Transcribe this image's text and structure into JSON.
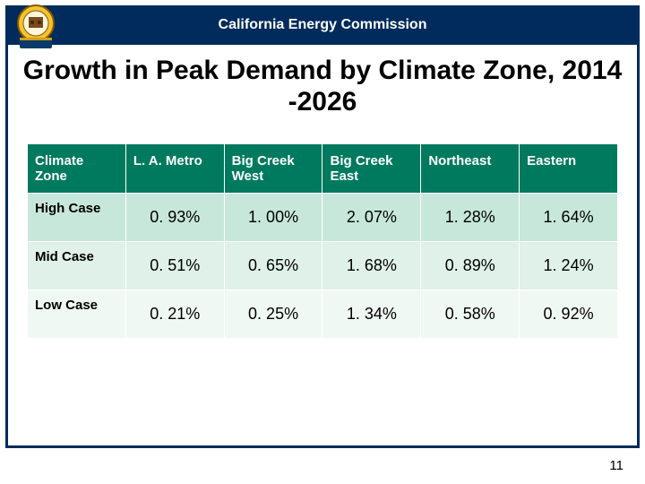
{
  "header": {
    "org": "California Energy Commission"
  },
  "title": "Growth in Peak Demand by Climate Zone, 2014 -2026",
  "table": {
    "columns": [
      "Climate Zone",
      "L. A. Metro",
      "Big Creek West",
      "Big Creek East",
      "Northeast",
      "Eastern"
    ],
    "rows": [
      {
        "label": "High Case",
        "values": [
          "0. 93%",
          "1. 00%",
          "2. 07%",
          "1. 28%",
          "1. 64%"
        ]
      },
      {
        "label": "Mid Case",
        "values": [
          "0. 51%",
          "0. 65%",
          "1. 68%",
          "0. 89%",
          "1. 24%"
        ]
      },
      {
        "label": "Low Case",
        "values": [
          "0. 21%",
          "0. 25%",
          "1. 34%",
          "0. 58%",
          "0. 92%"
        ]
      }
    ],
    "header_bg": "#007a5e",
    "header_fg": "#ffffff",
    "row_bgs": [
      "#c7e7da",
      "#dff1e9",
      "#f0f8f4"
    ],
    "cell_border": "#ffffff",
    "label_fontsize": 15,
    "value_fontsize": 18
  },
  "page_number": "11",
  "colors": {
    "frame": "#002b5c",
    "title": "#000000",
    "background": "#ffffff"
  }
}
